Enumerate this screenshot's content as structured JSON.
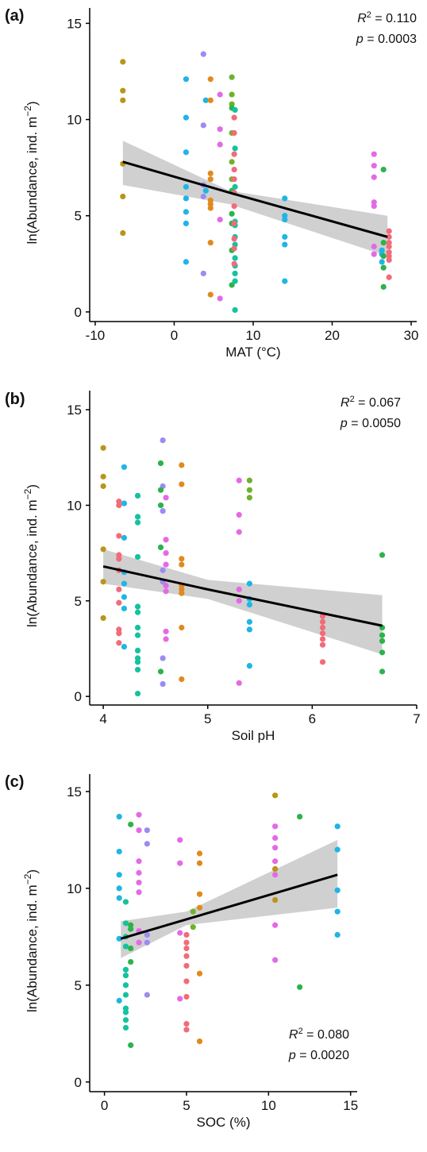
{
  "chart_data": [
    {
      "type": "scatter",
      "panel_label": "(a)",
      "x_label": "MAT (°C)",
      "y_label": [
        "ln(Abundance, ind. m",
        "−2",
        ")"
      ],
      "stats": [
        {
          "symbol": "R",
          "sup": "2",
          "text": " = 0.110"
        },
        {
          "symbol": "p",
          "text": " = 0.0003"
        }
      ],
      "xlim": [
        -10.7,
        30.7
      ],
      "ylim": [
        -0.5,
        15.8
      ],
      "xticks": [
        -10,
        0,
        10,
        20,
        30
      ],
      "yticks": [
        0,
        5,
        10,
        15
      ],
      "series": [
        {
          "color": "#b8961a",
          "x": [
            -6.5,
            -6.5,
            -6.5,
            -6.5,
            -6.5,
            -6.5
          ],
          "y": [
            13.0,
            11.5,
            11.0,
            7.7,
            6.0,
            4.1
          ]
        },
        {
          "color": "#1fb5e5",
          "x": [
            1.5,
            1.5,
            1.5,
            1.5,
            1.5,
            1.5,
            1.5,
            1.5,
            4,
            4,
            14,
            14,
            14,
            14,
            14,
            14,
            26.3,
            26.3,
            26.3
          ],
          "y": [
            12.1,
            10.1,
            8.3,
            6.5,
            5.9,
            5.2,
            4.6,
            2.6,
            11.0,
            6.3,
            5.9,
            5.0,
            4.8,
            3.9,
            3.5,
            1.6,
            3.2,
            3.0,
            2.6
          ]
        },
        {
          "color": "#9a8cf2",
          "x": [
            3.7,
            3.7,
            3.7,
            3.7,
            3.7
          ],
          "y": [
            13.4,
            9.7,
            6.6,
            6.0,
            2.0
          ]
        },
        {
          "color": "#e08a1e",
          "x": [
            4.6,
            4.6,
            4.6,
            4.6,
            4.6,
            4.6,
            4.6,
            4.6,
            4.6
          ],
          "y": [
            12.1,
            11.0,
            7.2,
            6.9,
            5.8,
            5.6,
            5.4,
            3.6,
            0.9
          ]
        },
        {
          "color": "#e36ae6",
          "x": [
            5.8,
            5.8,
            5.8,
            5.8,
            5.8,
            25.3,
            25.3,
            25.3,
            25.3,
            25.3,
            25.3,
            25.3
          ],
          "y": [
            11.3,
            9.5,
            8.7,
            4.8,
            0.7,
            8.2,
            7.6,
            7.0,
            5.7,
            5.5,
            3.4,
            3.0
          ]
        },
        {
          "color": "#6fb22a",
          "x": [
            7.3,
            7.3,
            7.3,
            7.3,
            7.3,
            7.3
          ],
          "y": [
            12.2,
            11.3,
            10.8,
            9.3,
            7.8,
            6.9
          ]
        },
        {
          "color": "#2cb34a",
          "x": [
            7.3,
            7.3,
            7.3,
            7.3,
            7.3,
            7.3,
            26.5,
            26.5,
            26.5,
            26.5,
            26.5
          ],
          "y": [
            10.6,
            6.3,
            5.1,
            4.6,
            3.2,
            1.4,
            7.4,
            3.6,
            2.9,
            2.3,
            1.3
          ]
        },
        {
          "color": "#14c2a0",
          "x": [
            7.7,
            7.7,
            7.7,
            7.7,
            7.7,
            7.7,
            7.7,
            7.7,
            7.7,
            7.7,
            7.7,
            7.7
          ],
          "y": [
            10.5,
            8.5,
            6.5,
            4.7,
            4.5,
            3.9,
            3.5,
            2.8,
            2.4,
            2.0,
            1.6,
            0.1
          ]
        },
        {
          "color": "#f26b7a",
          "x": [
            7.6,
            7.6,
            7.6,
            7.6,
            7.6,
            7.6,
            7.6,
            7.6,
            7.6,
            7.6,
            7.6,
            27.2,
            27.2,
            27.2,
            27.2,
            27.2,
            27.2,
            27.2,
            27.2
          ],
          "y": [
            10.1,
            9.3,
            8.2,
            7.4,
            6.9,
            6.2,
            5.5,
            4.6,
            3.8,
            3.3,
            2.5,
            4.2,
            3.9,
            3.6,
            3.4,
            3.1,
            2.9,
            2.7,
            1.8
          ]
        }
      ],
      "fit": {
        "x": [
          -6.5,
          7,
          27
        ],
        "y": [
          7.8,
          6.2,
          3.9
        ],
        "lower": [
          6.6,
          5.6,
          2.9
        ],
        "upper": [
          8.9,
          6.3,
          5.0
        ]
      }
    },
    {
      "type": "scatter",
      "panel_label": "(b)",
      "x_label": "Soil pH",
      "y_label": [
        "ln(Abundance, ind. m",
        "−2",
        ")"
      ],
      "stats": [
        {
          "symbol": "R",
          "sup": "2",
          "text": " = 0.067"
        },
        {
          "symbol": "p",
          "text": " = 0.0050"
        }
      ],
      "xlim": [
        3.87,
        7.0
      ],
      "ylim": [
        -0.45,
        16.0
      ],
      "xticks": [
        4,
        5,
        6,
        7
      ],
      "yticks": [
        0,
        5,
        10,
        15
      ],
      "series": [
        {
          "color": "#b8961a",
          "x": [
            4.0,
            4.0,
            4.0,
            4.0,
            4.0,
            4.0
          ],
          "y": [
            13.0,
            11.5,
            11.0,
            7.7,
            6.0,
            4.1
          ]
        },
        {
          "color": "#f26b7a",
          "x": [
            4.15,
            4.15,
            4.15,
            4.15,
            4.15,
            4.15,
            4.15,
            4.15,
            4.15,
            4.15,
            4.15,
            6.1,
            6.1,
            6.1,
            6.1,
            6.1,
            6.1,
            6.1
          ],
          "y": [
            10.2,
            10.0,
            8.4,
            7.4,
            7.2,
            6.6,
            5.6,
            4.9,
            3.5,
            3.3,
            2.8,
            4.2,
            3.9,
            3.6,
            3.3,
            3.0,
            2.7,
            1.8
          ]
        },
        {
          "color": "#1fb5e5",
          "x": [
            4.2,
            4.2,
            4.2,
            4.2,
            4.2,
            4.2,
            4.2,
            4.2,
            5.4,
            5.4,
            5.4,
            5.4,
            5.4,
            5.4
          ],
          "y": [
            12.0,
            10.1,
            8.3,
            6.5,
            5.9,
            5.2,
            4.6,
            2.6,
            5.9,
            5.1,
            4.8,
            3.9,
            3.5,
            1.6
          ]
        },
        {
          "color": "#14c2a0",
          "x": [
            4.33,
            4.33,
            4.33,
            4.33,
            4.33,
            4.33,
            4.33,
            4.33,
            4.33,
            4.33,
            4.33,
            4.33,
            4.33
          ],
          "y": [
            10.5,
            9.4,
            9.1,
            7.3,
            4.7,
            4.4,
            3.6,
            3.2,
            2.4,
            2.0,
            1.8,
            1.4,
            0.15
          ]
        },
        {
          "color": "#9a8cf2",
          "x": [
            4.57,
            4.57,
            4.57,
            4.57,
            4.57,
            4.57,
            4.57
          ],
          "y": [
            13.4,
            11.0,
            9.7,
            6.6,
            6.0,
            2.0,
            0.65
          ]
        },
        {
          "color": "#2cb34a",
          "x": [
            4.55,
            4.55,
            4.55,
            4.55,
            4.55,
            6.67,
            6.67,
            6.67,
            6.67,
            6.67,
            6.67
          ],
          "y": [
            12.2,
            10.8,
            10.0,
            7.8,
            1.3,
            7.4,
            3.6,
            3.2,
            2.9,
            2.3,
            1.3
          ]
        },
        {
          "color": "#e36ae6",
          "x": [
            4.6,
            4.6,
            4.6,
            4.6,
            4.6,
            4.6,
            4.6,
            4.6,
            5.3,
            5.3,
            5.3,
            5.3,
            5.3,
            5.3
          ],
          "y": [
            10.4,
            8.2,
            7.5,
            6.9,
            5.8,
            5.5,
            3.4,
            3.0,
            11.3,
            9.5,
            8.6,
            5.6,
            5.0,
            0.7
          ]
        },
        {
          "color": "#e08a1e",
          "x": [
            4.75,
            4.75,
            4.75,
            4.75,
            4.75,
            4.75,
            4.75,
            4.75,
            4.75
          ],
          "y": [
            12.1,
            11.1,
            7.2,
            6.9,
            5.8,
            5.6,
            5.4,
            3.6,
            0.9
          ]
        },
        {
          "color": "#6fb22a",
          "x": [
            5.4,
            5.4,
            5.4
          ],
          "y": [
            11.3,
            10.8,
            10.4
          ]
        }
      ],
      "fit": {
        "x": [
          4.0,
          5.0,
          6.67
        ],
        "y": [
          6.8,
          5.6,
          3.7
        ],
        "lower": [
          5.9,
          5.1,
          2.2
        ],
        "upper": [
          7.7,
          6.1,
          5.3
        ]
      }
    },
    {
      "type": "scatter",
      "panel_label": "(c)",
      "x_label": "SOC (%)",
      "y_label": [
        "ln(Abundance, ind. m",
        "−2",
        ")"
      ],
      "stats": [
        {
          "symbol": "R",
          "sup": "2",
          "text": " = 0.080"
        },
        {
          "symbol": "p",
          "text": " = 0.0020"
        }
      ],
      "xlim": [
        -0.9,
        15.4
      ],
      "ylim": [
        -0.5,
        15.9
      ],
      "xticks": [
        0,
        5,
        10,
        15
      ],
      "yticks": [
        0,
        5,
        10,
        15
      ],
      "series": [
        {
          "color": "#1fb5e5",
          "x": [
            0.9,
            0.9,
            0.9,
            0.9,
            0.9,
            0.9,
            0.9,
            14.2,
            14.2,
            14.2,
            14.2,
            14.2
          ],
          "y": [
            13.7,
            11.9,
            10.7,
            10.0,
            9.5,
            7.4,
            4.2,
            13.2,
            12.0,
            9.9,
            8.8,
            7.6
          ]
        },
        {
          "color": "#14c2a0",
          "x": [
            1.3,
            1.3,
            1.3,
            1.3,
            1.3,
            1.3,
            1.3,
            1.3,
            1.3,
            1.3,
            1.3,
            1.3
          ],
          "y": [
            9.3,
            8.2,
            7.5,
            7.0,
            5.8,
            5.5,
            5.0,
            4.5,
            3.8,
            3.6,
            3.2,
            2.8
          ]
        },
        {
          "color": "#2cb34a",
          "x": [
            1.6,
            1.6,
            1.6,
            1.6,
            1.6,
            1.6,
            11.9,
            11.9
          ],
          "y": [
            13.3,
            8.1,
            7.9,
            6.9,
            6.2,
            1.9,
            13.7,
            4.9
          ]
        },
        {
          "color": "#e36ae6",
          "x": [
            2.1,
            2.1,
            2.1,
            2.1,
            2.1,
            2.1,
            2.1,
            2.1,
            4.6,
            4.6,
            4.6,
            4.6,
            10.4,
            10.4,
            10.4,
            10.4,
            10.4,
            10.4,
            10.4,
            10.4
          ],
          "y": [
            13.8,
            13.0,
            11.4,
            10.8,
            10.3,
            9.8,
            7.8,
            7.2,
            12.5,
            11.3,
            7.7,
            4.3,
            13.2,
            12.6,
            12.1,
            11.4,
            11.0,
            10.7,
            8.1,
            6.3
          ]
        },
        {
          "color": "#9a8cf2",
          "x": [
            2.6,
            2.6,
            2.6,
            2.6,
            2.6
          ],
          "y": [
            13.0,
            12.3,
            7.6,
            7.2,
            4.5
          ]
        },
        {
          "color": "#f26b7a",
          "x": [
            5.0,
            5.0,
            5.0,
            5.0,
            5.0,
            5.0,
            5.0,
            5.0,
            5.0
          ],
          "y": [
            7.6,
            7.2,
            6.9,
            6.5,
            6.0,
            5.2,
            4.4,
            3.0,
            2.7
          ]
        },
        {
          "color": "#6fb22a",
          "x": [
            5.4,
            5.4
          ],
          "y": [
            8.8,
            8.0
          ]
        },
        {
          "color": "#e08a1e",
          "x": [
            5.8,
            5.8,
            5.8,
            5.8,
            5.8,
            5.8
          ],
          "y": [
            11.8,
            11.3,
            9.7,
            9.0,
            5.6,
            2.1
          ]
        },
        {
          "color": "#b8961a",
          "x": [
            10.4,
            10.4,
            10.4
          ],
          "y": [
            14.8,
            11.0,
            9.4
          ]
        }
      ],
      "fit": {
        "x": [
          1.0,
          5.0,
          14.2
        ],
        "y": [
          7.4,
          8.4,
          10.7
        ],
        "lower": [
          6.4,
          8.1,
          9.0
        ],
        "upper": [
          8.3,
          8.8,
          12.5
        ]
      }
    }
  ]
}
